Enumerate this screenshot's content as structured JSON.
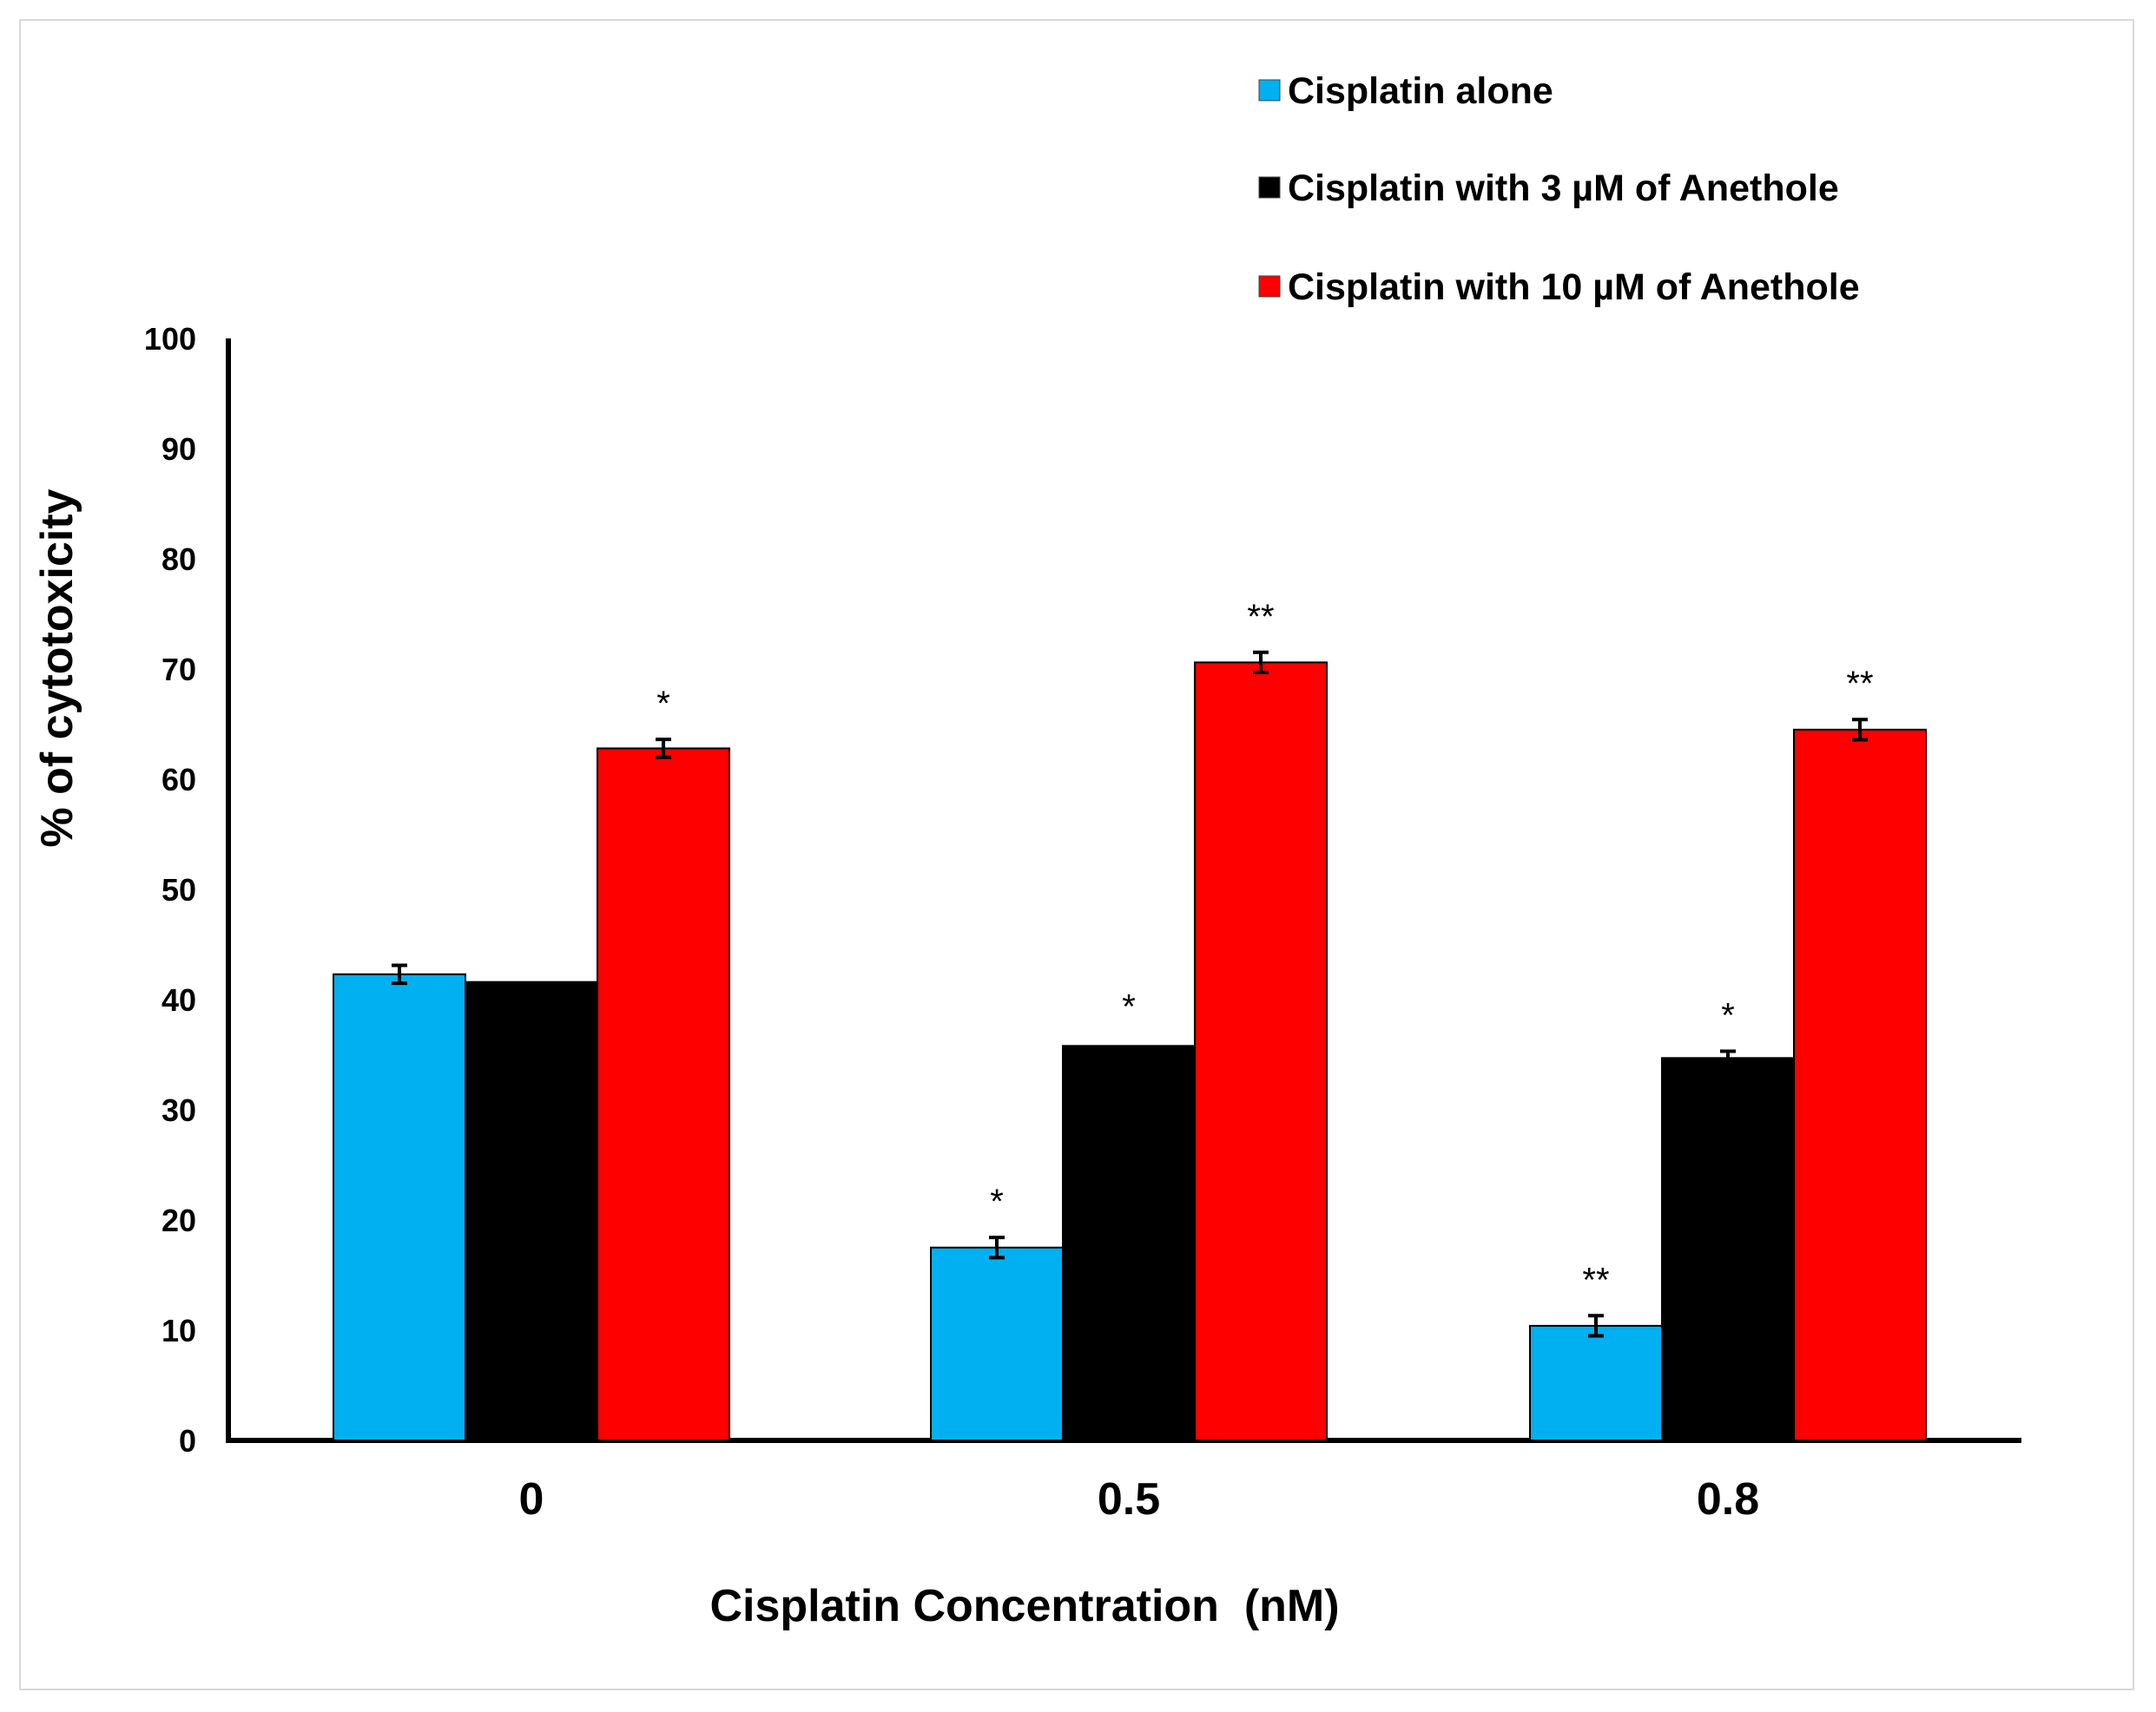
{
  "chart_data": {
    "type": "bar",
    "title": "",
    "xlabel": "Cisplatin Concentration  (nM)",
    "ylabel": "% of cytotoxicity",
    "ylim": [
      0,
      100
    ],
    "yticks": [
      "0",
      "10",
      "20",
      "30",
      "40",
      "50",
      "60",
      "70",
      "80",
      "90",
      "100"
    ],
    "categories": [
      "0",
      "0.5",
      "0.8"
    ],
    "legend_position": "top-right",
    "series": [
      {
        "name": "Cisplatin alone",
        "color": "#00b0f0",
        "values": [
          42.3,
          17.5,
          10.4
        ],
        "errors": [
          0.5,
          0.6,
          0.6
        ],
        "significance": [
          "",
          "*",
          "**"
        ]
      },
      {
        "name": "Cisplatin with 3 µM of Anethole",
        "color": "#000000",
        "values": [
          41.6,
          35.8,
          34.7
        ],
        "errors": [
          0,
          0,
          0.3
        ],
        "significance": [
          "",
          "*",
          "*"
        ]
      },
      {
        "name": "Cisplatin with 10 µM of Anethole",
        "color": "#ff0000",
        "values": [
          62.8,
          70.6,
          64.5
        ],
        "errors": [
          0.5,
          0.6,
          0.6
        ],
        "significance": [
          "*",
          "**",
          "**"
        ]
      }
    ]
  }
}
